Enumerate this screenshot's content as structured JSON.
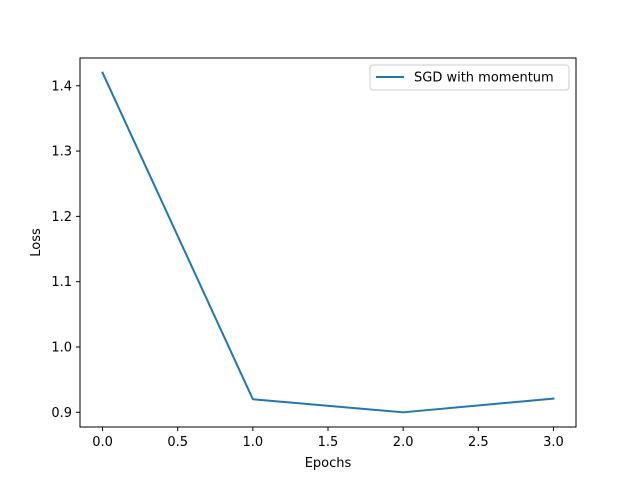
{
  "chart_data": {
    "type": "line",
    "title": "",
    "xlabel": "Epochs",
    "ylabel": "Loss",
    "xlim": [
      -0.15,
      3.15
    ],
    "ylim": [
      0.8775,
      1.4425
    ],
    "xticks": [
      0.0,
      0.5,
      1.0,
      1.5,
      2.0,
      2.5,
      3.0
    ],
    "xtick_labels": [
      "0.0",
      "0.5",
      "1.0",
      "1.5",
      "2.0",
      "2.5",
      "3.0"
    ],
    "yticks": [
      0.9,
      1.0,
      1.1,
      1.2,
      1.3,
      1.4
    ],
    "ytick_labels": [
      "0.9",
      "1.0",
      "1.1",
      "1.2",
      "1.3",
      "1.4"
    ],
    "grid": false,
    "legend_position": "top-right",
    "series": [
      {
        "name": "SGD with momentum",
        "color": "#1f77b4",
        "x": [
          0,
          1,
          2,
          3
        ],
        "y": [
          1.42,
          0.92,
          0.9,
          0.921
        ]
      }
    ]
  }
}
